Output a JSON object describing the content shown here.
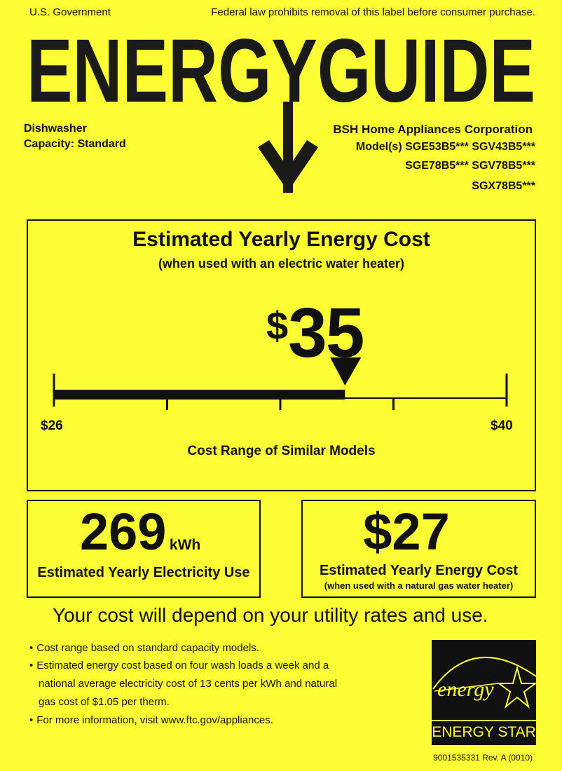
{
  "header": {
    "left": "U.S. Government",
    "right": "Federal law prohibits removal of this label before consumer purchase.",
    "title": "ENERGYGUIDE"
  },
  "product": {
    "type": "Dishwasher",
    "capacity_label": "Capacity:",
    "capacity_value": "Standard",
    "manufacturer": "BSH Home Appliances Corporation",
    "models_label": "Model(s)",
    "models_line1": "SGE53B5*** SGV43B5***",
    "models_line2": "SGE78B5*** SGV78B5***",
    "models_line3": "SGX78B5***"
  },
  "main": {
    "title": "Estimated Yearly Energy Cost",
    "subtitle": "(when used with an electric water heater)",
    "cost_symbol": "$",
    "cost_value": "35",
    "range_min_label": "$26",
    "range_max_label": "$40",
    "range_min": 26,
    "range_max": 40,
    "value": 35,
    "range_caption": "Cost Range of Similar Models"
  },
  "electricity": {
    "value": "269",
    "unit": "kWh",
    "label": "Estimated Yearly Electricity Use"
  },
  "gas": {
    "value": "$27",
    "label": "Estimated Yearly Energy Cost",
    "sublabel": "(when used with a natural gas water heater)"
  },
  "disclaimer": "Your cost will depend on your utility rates and use.",
  "notes": [
    "Cost range based on standard capacity models.",
    "Estimated energy cost based on four wash loads a week and a",
    "national average electricity cost of 13 cents per kWh and natural",
    "gas cost of $1.05 per therm.",
    "For more information, visit www.ftc.gov/appliances."
  ],
  "energy_star": {
    "script": "energy",
    "label": "ENERGY STAR"
  },
  "footer_code": "9001535331 Rev. A (0010)",
  "colors": {
    "background": "#fdfd35",
    "ink": "#111111"
  }
}
